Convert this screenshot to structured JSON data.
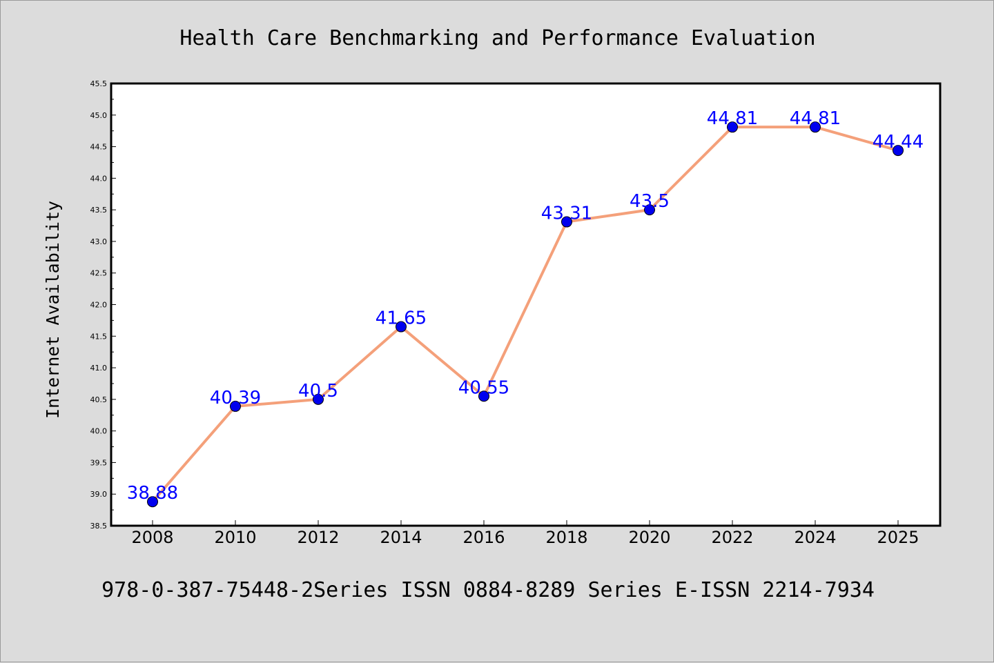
{
  "chart_data": {
    "type": "line",
    "title": "Health Care Benchmarking and Performance Evaluation",
    "xlabel": "",
    "ylabel": "Internet Availability",
    "categories": [
      "2008",
      "2010",
      "2012",
      "2014",
      "2016",
      "2018",
      "2020",
      "2022",
      "2024",
      "2025"
    ],
    "series": [
      {
        "values": [
          38.88,
          40.39,
          40.5,
          41.65,
          40.55,
          43.31,
          43.5,
          44.81,
          44.81,
          44.44
        ],
        "data_labels": [
          "38.88",
          "40.39",
          "40.5",
          "41.65",
          "40.55",
          "43.31",
          "43.5",
          "44.81",
          "44.81",
          "44.44"
        ]
      }
    ],
    "ylim": [
      38.5,
      45.5
    ],
    "yticks": [
      "38.5",
      "39.0",
      "39.5",
      "40.0",
      "40.5",
      "41.0",
      "41.5",
      "42.0",
      "42.5",
      "43.0",
      "43.5",
      "44.0",
      "44.5",
      "45.0",
      "45.5"
    ],
    "grid": false,
    "legend": "none",
    "colors": {
      "line": "#f4a07a",
      "marker": "#0000ee",
      "label": "#0000ff",
      "background": "#dcdcdc",
      "plot_background": "#ffffff"
    }
  },
  "footer": "978-0-387-75448-2Series ISSN 0884-8289 Series E-ISSN 2214-7934"
}
